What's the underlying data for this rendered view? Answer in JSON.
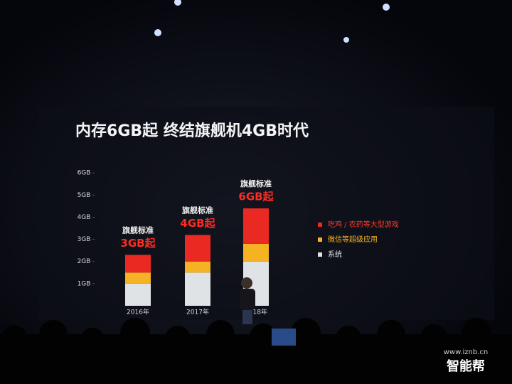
{
  "chart_data": {
    "type": "stacked-bar",
    "title": "内存6GB起 终结旗舰机4GB时代",
    "categories": [
      "2016年",
      "2017年",
      "2018年"
    ],
    "series": [
      {
        "name": "系统",
        "color": "#dfe3e6",
        "values": [
          1,
          1.5,
          2
        ]
      },
      {
        "name": "微信等超级应用",
        "color": "#f5b324",
        "values": [
          0.5,
          0.5,
          0.8
        ]
      },
      {
        "name": "吃鸡 / 农药等大型游戏",
        "color": "#ea2a22",
        "values": [
          0.8,
          1.2,
          1.6
        ]
      }
    ],
    "annotations": [
      {
        "label": "旗舰标准",
        "highlight": "3GB起"
      },
      {
        "label": "旗舰标准",
        "highlight": "4GB起"
      },
      {
        "label": "旗舰标准",
        "highlight": "6GB起"
      }
    ],
    "ylim": [
      0,
      6.2
    ],
    "yticks": [
      {
        "value": 1,
        "label": "1GB"
      },
      {
        "value": 2,
        "label": "2GB"
      },
      {
        "value": 3,
        "label": "3GB"
      },
      {
        "value": 4,
        "label": "4GB"
      },
      {
        "value": 5,
        "label": "5GB"
      },
      {
        "value": 6,
        "label": "6GB"
      }
    ],
    "legend": "right",
    "watermark": {
      "url": "www.iznb.cn",
      "brand": "智能帮"
    }
  }
}
